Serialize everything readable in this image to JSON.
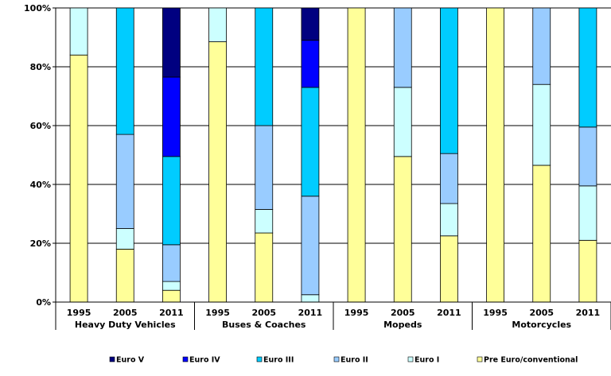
{
  "chart_data": {
    "type": "bar",
    "stacked": true,
    "percent": true,
    "ylim": [
      0,
      100
    ],
    "yticks": [
      "0%",
      "20%",
      "40%",
      "60%",
      "80%",
      "100%"
    ],
    "grid": true,
    "legend_position": "bottom",
    "groups": [
      "Heavy Duty Vehicles",
      "Buses & Coaches",
      "Mopeds",
      "Motorcycles"
    ],
    "categories": [
      "1995",
      "2005",
      "2011",
      "1995",
      "2005",
      "2011",
      "1995",
      "2005",
      "2011",
      "1995",
      "2005",
      "2011"
    ],
    "series": [
      {
        "name": "Pre Euro/conventional",
        "color": "#FFFF99",
        "values": [
          84,
          18,
          4,
          88.5,
          23.5,
          0,
          100,
          49.5,
          22.5,
          100,
          46.5,
          21
        ]
      },
      {
        "name": "Euro I",
        "color": "#CCFFFF",
        "values": [
          16,
          7,
          3,
          11.5,
          8,
          2.5,
          0,
          23.5,
          11,
          0,
          27.5,
          18.5
        ]
      },
      {
        "name": "Euro II",
        "color": "#99CCFF",
        "values": [
          0,
          32,
          12.5,
          0,
          28.5,
          33.5,
          0,
          27,
          17,
          0,
          26,
          20
        ]
      },
      {
        "name": "Euro III",
        "color": "#00CCFF",
        "values": [
          0,
          43,
          30,
          0,
          40,
          37,
          0,
          0,
          49.5,
          0,
          0,
          40.5
        ]
      },
      {
        "name": "Euro IV",
        "color": "#0000FF",
        "values": [
          0,
          0,
          27,
          0,
          0,
          16,
          0,
          0,
          0,
          0,
          0,
          0
        ]
      },
      {
        "name": "Euro V",
        "color": "#000080",
        "values": [
          0,
          0,
          23.5,
          0,
          0,
          11,
          0,
          0,
          0,
          0,
          0,
          0
        ]
      }
    ],
    "legend_order": [
      "Euro V",
      "Euro IV",
      "Euro III",
      "Euro II",
      "Euro I",
      "Pre Euro/conventional"
    ]
  }
}
